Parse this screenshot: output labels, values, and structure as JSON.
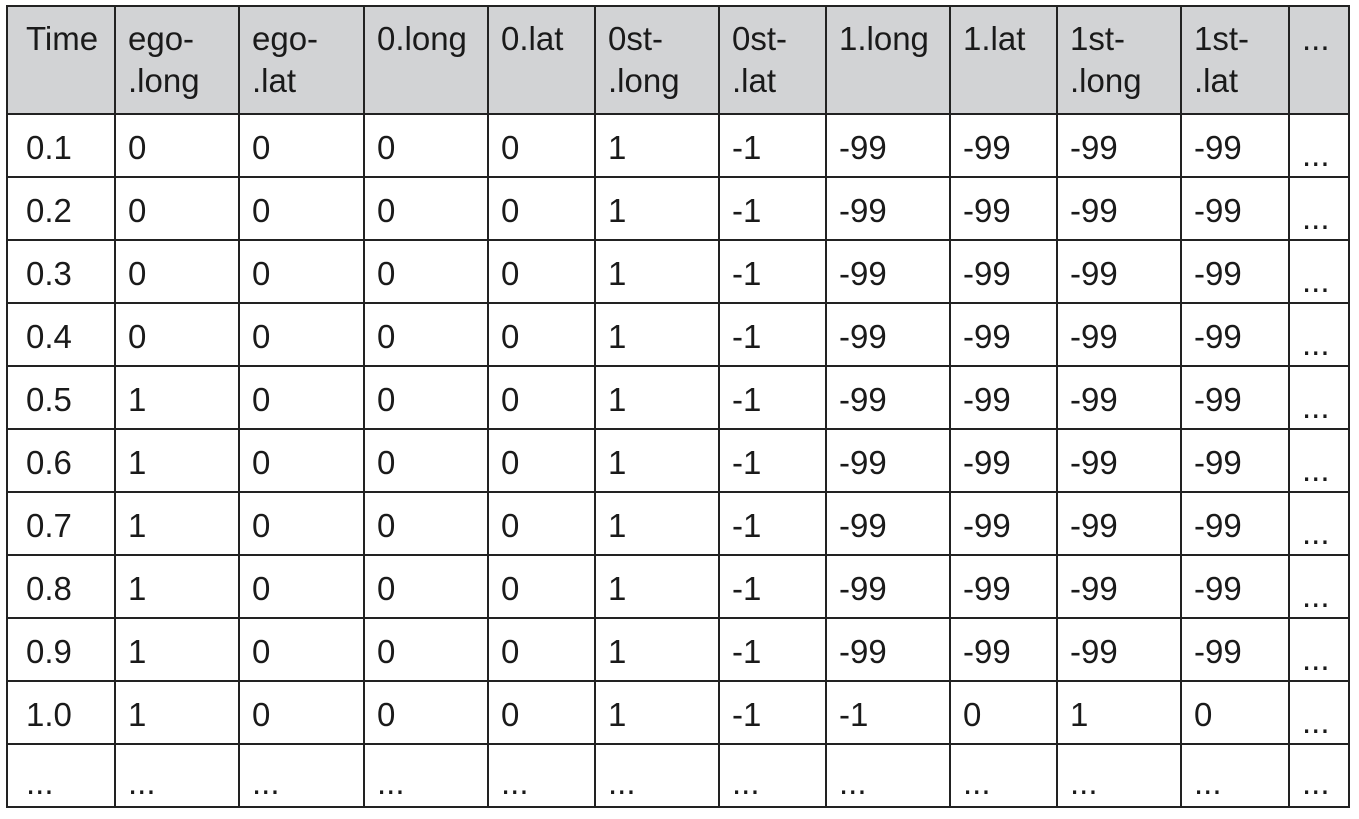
{
  "table": {
    "headers": [
      "Time",
      "ego-\n.long",
      "ego-\n.lat",
      "0.long",
      "0.lat",
      "0st-\n.long",
      "0st-\n.lat",
      "1.long",
      "1.lat",
      "1st-\n.long",
      "1st-\n.lat",
      "..."
    ],
    "rows": [
      [
        "0.1",
        "0",
        "0",
        "0",
        "0",
        "1",
        "-1",
        "-99",
        "-99",
        "-99",
        "-99",
        "..."
      ],
      [
        "0.2",
        "0",
        "0",
        "0",
        "0",
        "1",
        "-1",
        "-99",
        "-99",
        "-99",
        "-99",
        "..."
      ],
      [
        "0.3",
        "0",
        "0",
        "0",
        "0",
        "1",
        "-1",
        "-99",
        "-99",
        "-99",
        "-99",
        "..."
      ],
      [
        "0.4",
        "0",
        "0",
        "0",
        "0",
        "1",
        "-1",
        "-99",
        "-99",
        "-99",
        "-99",
        "..."
      ],
      [
        "0.5",
        "1",
        "0",
        "0",
        "0",
        "1",
        "-1",
        "-99",
        "-99",
        "-99",
        "-99",
        "..."
      ],
      [
        "0.6",
        "1",
        "0",
        "0",
        "0",
        "1",
        "-1",
        "-99",
        "-99",
        "-99",
        "-99",
        "..."
      ],
      [
        "0.7",
        "1",
        "0",
        "0",
        "0",
        "1",
        "-1",
        "-99",
        "-99",
        "-99",
        "-99",
        "..."
      ],
      [
        "0.8",
        "1",
        "0",
        "0",
        "0",
        "1",
        "-1",
        "-99",
        "-99",
        "-99",
        "-99",
        "..."
      ],
      [
        "0.9",
        "1",
        "0",
        "0",
        "0",
        "1",
        "-1",
        "-99",
        "-99",
        "-99",
        "-99",
        "..."
      ],
      [
        "1.0",
        "1",
        "0",
        "0",
        "0",
        "1",
        "-1",
        "-1",
        "0",
        "1",
        "0",
        "..."
      ],
      [
        "...",
        "...",
        "...",
        "...",
        "...",
        "...",
        "...",
        "...",
        "...",
        "...",
        "...",
        "..."
      ]
    ]
  },
  "colors": {
    "header_background": "#d2d3d5",
    "border": "#222222",
    "text": "#1a1a1a"
  }
}
